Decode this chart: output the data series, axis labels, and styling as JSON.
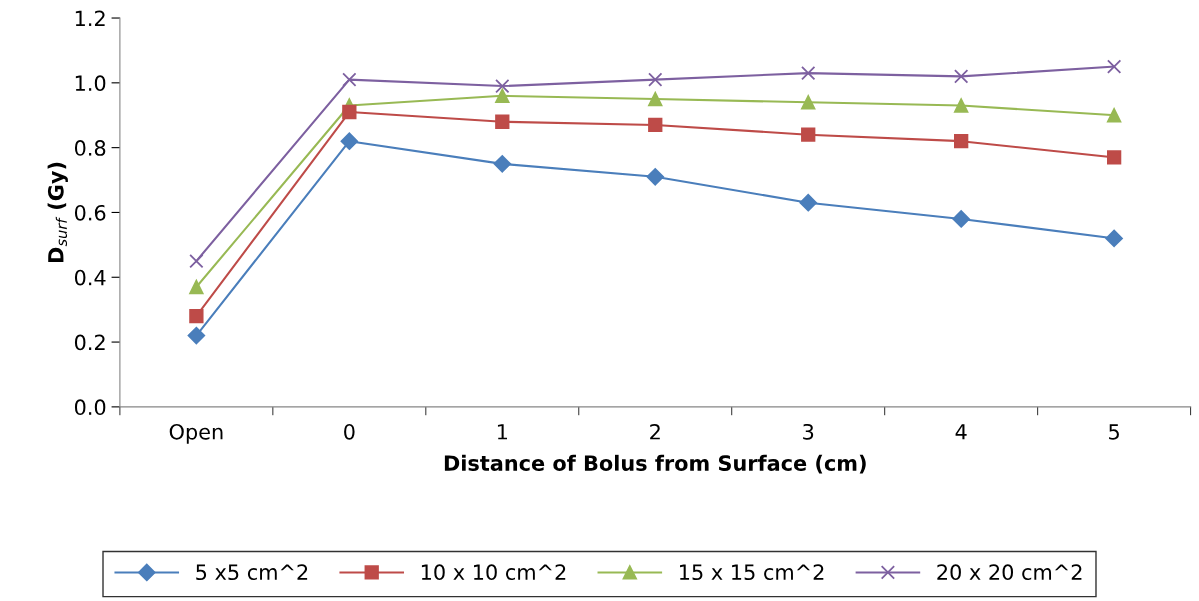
{
  "chart_data": {
    "type": "line",
    "categories": [
      "Open",
      "0",
      "1",
      "2",
      "3",
      "4",
      "5"
    ],
    "xlabel": "Distance of Bolus from Surface (cm)",
    "ylabel": "D$_{surf}$ (Gy)",
    "ylim": [
      0,
      1.2
    ],
    "yticks": [
      {
        "value": 0,
        "label": "0.0"
      },
      {
        "value": 0.2,
        "label": "0.2"
      },
      {
        "value": 0.4,
        "label": "0.4"
      },
      {
        "value": 0.6,
        "label": "0.6"
      },
      {
        "value": 0.8,
        "label": "0.8"
      },
      {
        "value": 1.0,
        "label": "1.0"
      },
      {
        "value": 1.2,
        "label": "1.2"
      }
    ],
    "grid": false,
    "legend": "bottom",
    "line_style": "solid",
    "series": [
      {
        "name": "5 x5 cm^2",
        "color": "#4a7ebb",
        "marker": "diamond",
        "values": [
          0.22,
          0.82,
          0.75,
          0.71,
          0.63,
          0.58,
          0.52
        ]
      },
      {
        "name": "10 x 10 cm^2",
        "color": "#be4b48",
        "marker": "square",
        "values": [
          0.28,
          0.91,
          0.88,
          0.87,
          0.84,
          0.82,
          0.77
        ]
      },
      {
        "name": "15 x 15 cm^2",
        "color": "#98b954",
        "marker": "triangle",
        "values": [
          0.37,
          0.93,
          0.96,
          0.95,
          0.94,
          0.93,
          0.9
        ]
      },
      {
        "name": "20 x 20 cm^2",
        "color": "#7d60a0",
        "marker": "cross",
        "values": [
          0.45,
          1.01,
          0.99,
          1.01,
          1.03,
          1.02,
          1.05
        ]
      }
    ]
  }
}
